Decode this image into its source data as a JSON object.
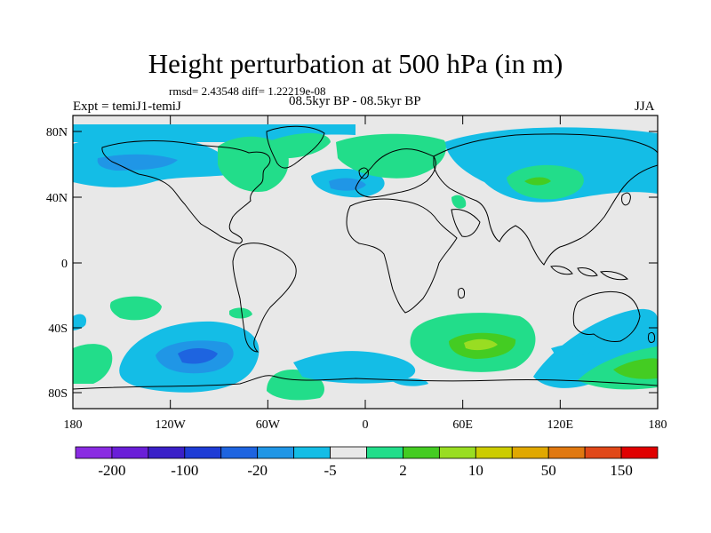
{
  "title": "Height perturbation at 500 hPa (in m)",
  "stats_line": "rmsd= 2.43548 diff= 1.22219e-08",
  "left_label": "Expt = temiJ1-temiJ",
  "center_label": "08.5kyr BP - 08.5kyr BP",
  "right_label": "JJA",
  "map": {
    "projection": "cylindrical equidistant",
    "lat_ticks": [
      "80N",
      "40N",
      "0",
      "40S",
      "80S"
    ],
    "lon_ticks": [
      "180",
      "120W",
      "60W",
      "0",
      "60E",
      "120E",
      "180"
    ],
    "background_color": "#e8e8e8",
    "coastline_color": "#000000"
  },
  "colorbar": {
    "colors": [
      "#8a2be2",
      "#6a1ed8",
      "#3a20c8",
      "#1e3cd6",
      "#1e64e0",
      "#2096e6",
      "#14bde6",
      "#e8e8e8",
      "#22dd8a",
      "#44cc22",
      "#99dd22",
      "#cccc00",
      "#e0a800",
      "#e07810",
      "#e04818",
      "#e00000"
    ],
    "labels": [
      "-200",
      "-100",
      "-20",
      "-5",
      "2",
      "10",
      "50",
      "150"
    ]
  }
}
